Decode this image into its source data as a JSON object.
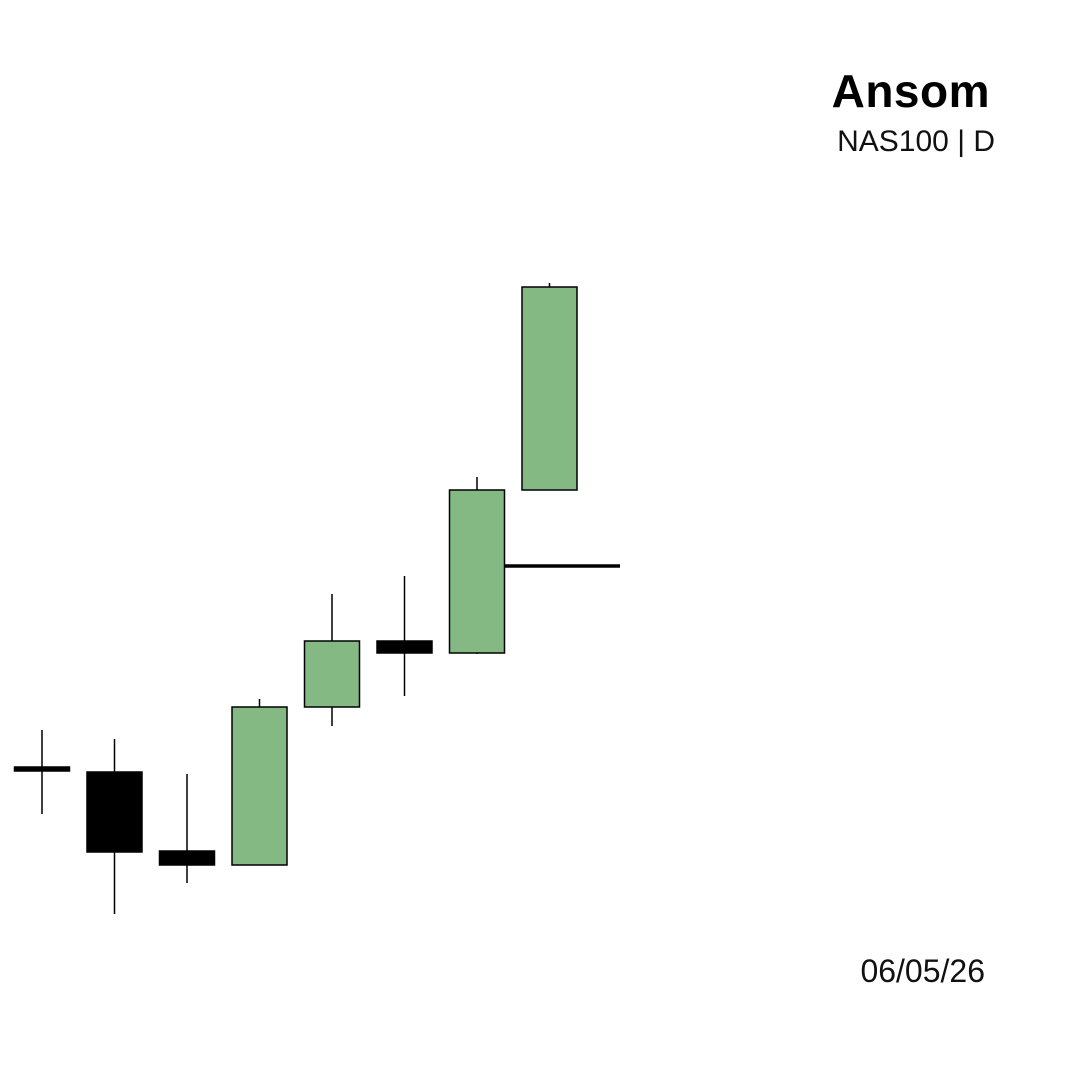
{
  "header": {
    "brand": "Ansom",
    "symbol_timeframe": "NAS100 | D"
  },
  "footer": {
    "date": "06/05/26"
  },
  "colors": {
    "bull_fill": "#84b984",
    "bear_fill": "#000000",
    "outline": "#000000",
    "background": "#ffffff"
  },
  "chart_data": {
    "type": "candlestick",
    "title": "",
    "xlabel": "",
    "ylabel": "",
    "grid": false,
    "axes_visible": false,
    "ylim": [
      0,
      1080
    ],
    "candles": [
      {
        "open": 313,
        "high": 350,
        "low": 266,
        "close": 309
      },
      {
        "open": 308,
        "high": 341,
        "low": 166,
        "close": 228
      },
      {
        "open": 229,
        "high": 306,
        "low": 197,
        "close": 215
      },
      {
        "open": 215,
        "high": 381,
        "low": 215,
        "close": 373
      },
      {
        "open": 373,
        "high": 486,
        "low": 354,
        "close": 439
      },
      {
        "open": 439,
        "high": 504,
        "low": 384,
        "close": 427
      },
      {
        "open": 427,
        "high": 603,
        "low": 426,
        "close": 590
      },
      {
        "open": 590,
        "high": 797,
        "low": 590,
        "close": 793
      }
    ],
    "horizontal_line": {
      "value": 514,
      "from_candle": 6,
      "to_candle": 8
    }
  }
}
